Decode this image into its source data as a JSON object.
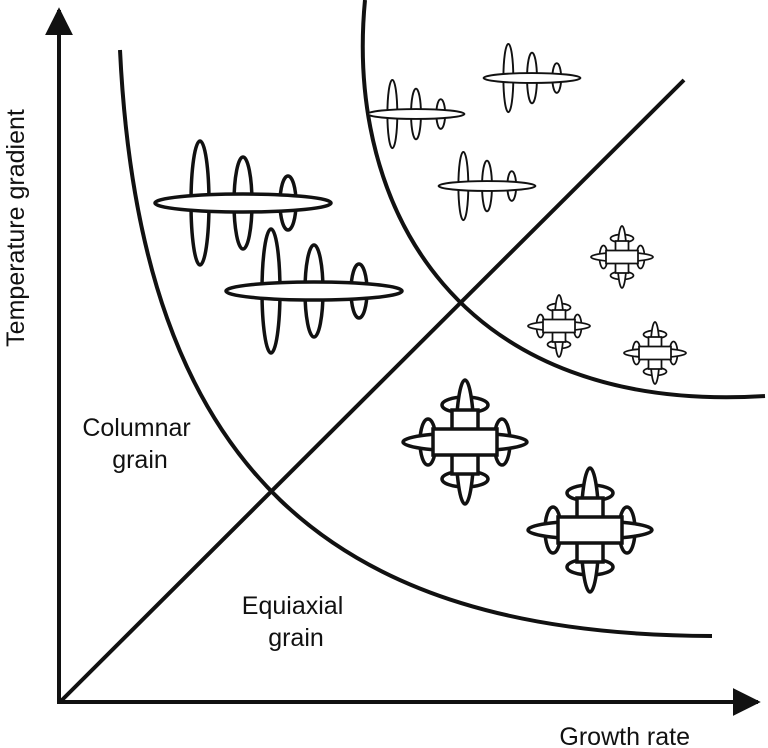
{
  "axes": {
    "x_label": "Growth rate",
    "y_label": "Temperature gradient"
  },
  "regions": {
    "columnar": [
      "Columnar",
      "grain"
    ],
    "equiaxial": [
      "Equiaxial",
      "grain"
    ]
  },
  "colors": {
    "stroke": "#111111",
    "background": "#ffffff"
  }
}
